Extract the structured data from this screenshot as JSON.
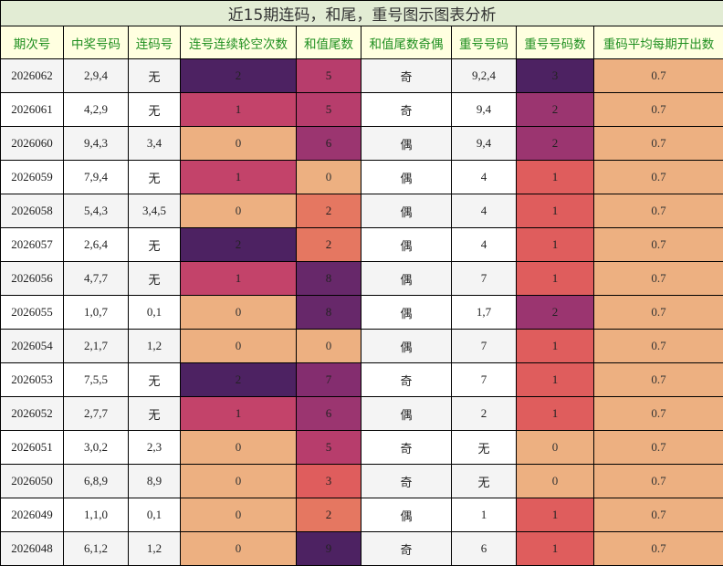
{
  "title": "近15期连码，和尾，重号图示图表分析",
  "columns": [
    "期次号",
    "中奖号码",
    "连码号",
    "连号连续轮空次数",
    "和值尾数",
    "和值尾数奇偶",
    "重号号码",
    "重号号码数",
    "重码平均每期开出数"
  ],
  "rows": [
    {
      "issue": "2026062",
      "numbers": "2,9,4",
      "consecutive": "无",
      "gap": "2",
      "sum_tail": "5",
      "parity": "奇",
      "repeat_nums": "9,2,4",
      "repeat_count": "3",
      "avg": "0.7"
    },
    {
      "issue": "2026061",
      "numbers": "4,2,9",
      "consecutive": "无",
      "gap": "1",
      "sum_tail": "5",
      "parity": "奇",
      "repeat_nums": "9,4",
      "repeat_count": "2",
      "avg": "0.7"
    },
    {
      "issue": "2026060",
      "numbers": "9,4,3",
      "consecutive": "3,4",
      "gap": "0",
      "sum_tail": "6",
      "parity": "偶",
      "repeat_nums": "9,4",
      "repeat_count": "2",
      "avg": "0.7"
    },
    {
      "issue": "2026059",
      "numbers": "7,9,4",
      "consecutive": "无",
      "gap": "1",
      "sum_tail": "0",
      "parity": "偶",
      "repeat_nums": "4",
      "repeat_count": "1",
      "avg": "0.7"
    },
    {
      "issue": "2026058",
      "numbers": "5,4,3",
      "consecutive": "3,4,5",
      "gap": "0",
      "sum_tail": "2",
      "parity": "偶",
      "repeat_nums": "4",
      "repeat_count": "1",
      "avg": "0.7"
    },
    {
      "issue": "2026057",
      "numbers": "2,6,4",
      "consecutive": "无",
      "gap": "2",
      "sum_tail": "2",
      "parity": "偶",
      "repeat_nums": "4",
      "repeat_count": "1",
      "avg": "0.7"
    },
    {
      "issue": "2026056",
      "numbers": "4,7,7",
      "consecutive": "无",
      "gap": "1",
      "sum_tail": "8",
      "parity": "偶",
      "repeat_nums": "7",
      "repeat_count": "1",
      "avg": "0.7"
    },
    {
      "issue": "2026055",
      "numbers": "1,0,7",
      "consecutive": "0,1",
      "gap": "0",
      "sum_tail": "8",
      "parity": "偶",
      "repeat_nums": "1,7",
      "repeat_count": "2",
      "avg": "0.7"
    },
    {
      "issue": "2026054",
      "numbers": "2,1,7",
      "consecutive": "1,2",
      "gap": "0",
      "sum_tail": "0",
      "parity": "偶",
      "repeat_nums": "7",
      "repeat_count": "1",
      "avg": "0.7"
    },
    {
      "issue": "2026053",
      "numbers": "7,5,5",
      "consecutive": "无",
      "gap": "2",
      "sum_tail": "7",
      "parity": "奇",
      "repeat_nums": "7",
      "repeat_count": "1",
      "avg": "0.7"
    },
    {
      "issue": "2026052",
      "numbers": "2,7,7",
      "consecutive": "无",
      "gap": "1",
      "sum_tail": "6",
      "parity": "偶",
      "repeat_nums": "2",
      "repeat_count": "1",
      "avg": "0.7"
    },
    {
      "issue": "2026051",
      "numbers": "3,0,2",
      "consecutive": "2,3",
      "gap": "0",
      "sum_tail": "5",
      "parity": "奇",
      "repeat_nums": "无",
      "repeat_count": "0",
      "avg": "0.7"
    },
    {
      "issue": "2026050",
      "numbers": "6,8,9",
      "consecutive": "8,9",
      "gap": "0",
      "sum_tail": "3",
      "parity": "奇",
      "repeat_nums": "无",
      "repeat_count": "0",
      "avg": "0.7"
    },
    {
      "issue": "2026049",
      "numbers": "1,1,0",
      "consecutive": "0,1",
      "gap": "0",
      "sum_tail": "2",
      "parity": "偶",
      "repeat_nums": "1",
      "repeat_count": "1",
      "avg": "0.7"
    },
    {
      "issue": "2026048",
      "numbers": "6,1,2",
      "consecutive": "1,2",
      "gap": "0",
      "sum_tail": "9",
      "parity": "奇",
      "repeat_nums": "6",
      "repeat_count": "1",
      "avg": "0.7"
    }
  ],
  "colors": {
    "title_bg": "#e2ecd4",
    "header_bg": "#ffffe0",
    "header_text": "#1f8f1f",
    "gap_scale": {
      "0": "#edb081",
      "1": "#c3436a",
      "2": "#4d2262"
    },
    "sum_tail_scale": {
      "0": "#edb081",
      "2": "#e57761",
      "3": "#df5d5d",
      "5": "#b73d6c",
      "6": "#9b3570",
      "7": "#842d6f",
      "8": "#67286a",
      "9": "#4d2262"
    },
    "repeat_count_scale": {
      "0": "#edb081",
      "1": "#df5d5d",
      "2": "#9b3570",
      "3": "#4d2262"
    },
    "avg_bg": "#edb081"
  }
}
